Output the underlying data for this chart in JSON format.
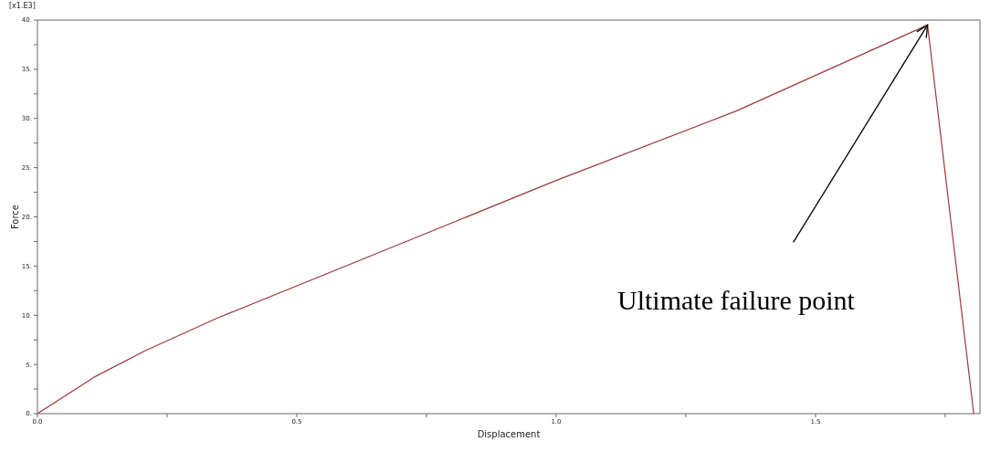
{
  "chart_data": {
    "type": "line",
    "xlabel": "Displacement",
    "ylabel": "Force",
    "x": [
      0,
      0.109,
      0.208,
      0.346,
      0.753,
      1.0,
      1.349,
      1.716,
      1.805
    ],
    "series": [
      {
        "color": "#9b3a3a",
        "values": [
          0,
          3.7,
          6.4,
          9.7,
          18.4,
          23.7,
          30.8,
          39.5,
          0
        ]
      }
    ],
    "xlim": [
      0,
      1.817
    ],
    "xticks": [
      {
        "value": 0,
        "label": "0.0"
      },
      {
        "value": 0.25,
        "label": null
      },
      {
        "value": 0.5,
        "label": "0.5"
      },
      {
        "value": 0.75,
        "label": null
      },
      {
        "value": 1,
        "label": "1.0"
      },
      {
        "value": 1.25,
        "label": null
      },
      {
        "value": 1.5,
        "label": "1.5"
      },
      {
        "value": 1.75,
        "label": null
      }
    ],
    "ylim": [
      0,
      40
    ],
    "yticks": [
      {
        "value": 0,
        "label": "0."
      },
      {
        "value": 2.5,
        "label": null
      },
      {
        "value": 5,
        "label": "5."
      },
      {
        "value": 7.5,
        "label": null
      },
      {
        "value": 10,
        "label": "10."
      },
      {
        "value": 12.5,
        "label": null
      },
      {
        "value": 15,
        "label": "15."
      },
      {
        "value": 17.5,
        "label": null
      },
      {
        "value": 20,
        "label": "20."
      },
      {
        "value": 22.5,
        "label": null
      },
      {
        "value": 25,
        "label": "25."
      },
      {
        "value": 27.5,
        "label": null
      },
      {
        "value": 30,
        "label": "30."
      },
      {
        "value": 32.5,
        "label": null
      },
      {
        "value": 35,
        "label": "35."
      },
      {
        "value": 37.5,
        "label": null
      },
      {
        "value": 40,
        "label": "40."
      }
    ],
    "annotations": [
      "[x1.E3]",
      "Ultimate failure point"
    ],
    "grid": false,
    "legend": false,
    "marker": "none",
    "line_style": "solid"
  }
}
